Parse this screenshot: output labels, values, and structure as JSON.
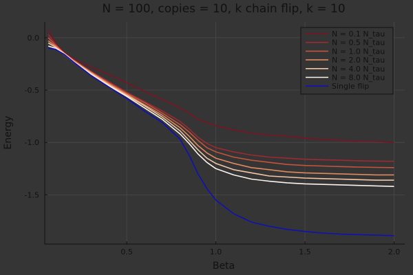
{
  "chart_data": {
    "type": "line",
    "title": "N = 100, copies = 10, k chain flip, k = 10",
    "xlabel": "Beta",
    "ylabel": "Energy",
    "xlim": [
      0.04,
      2.06
    ],
    "ylim": [
      -1.97,
      0.15
    ],
    "xticks": [
      0.5,
      1.0,
      1.5,
      2.0
    ],
    "xtick_labels": [
      "0.5",
      "1.0",
      "1.5",
      "2.0"
    ],
    "yticks": [
      0.0,
      -0.5,
      -1.0,
      -1.5
    ],
    "ytick_labels": [
      "0.0",
      "-0.5",
      "-1.0",
      "-1.5"
    ],
    "grid": true,
    "legend_position": "top-right",
    "x": [
      0.06,
      0.1,
      0.15,
      0.2,
      0.3,
      0.4,
      0.5,
      0.6,
      0.7,
      0.8,
      0.85,
      0.9,
      0.95,
      1.0,
      1.1,
      1.2,
      1.3,
      1.4,
      1.5,
      1.6,
      1.7,
      1.8,
      1.9,
      2.0
    ],
    "series": [
      {
        "name": "N = 0.1 N_tau",
        "color": "#7a1424",
        "values": [
          0.08,
          -0.05,
          -0.14,
          -0.2,
          -0.28,
          -0.35,
          -0.43,
          -0.51,
          -0.59,
          -0.67,
          -0.72,
          -0.78,
          -0.81,
          -0.84,
          -0.88,
          -0.91,
          -0.93,
          -0.94,
          -0.96,
          -0.97,
          -0.98,
          -0.99,
          -0.99,
          -1.0
        ]
      },
      {
        "name": "N = 0.5 N_tau",
        "color": "#9e2a2f",
        "values": [
          0.03,
          -0.06,
          -0.15,
          -0.21,
          -0.32,
          -0.42,
          -0.52,
          -0.61,
          -0.7,
          -0.8,
          -0.87,
          -0.95,
          -1.01,
          -1.05,
          -1.09,
          -1.12,
          -1.14,
          -1.15,
          -1.16,
          -1.165,
          -1.17,
          -1.175,
          -1.178,
          -1.18
        ]
      },
      {
        "name": "N = 1.0 N_tau",
        "color": "#c4543c",
        "values": [
          0.0,
          -0.07,
          -0.15,
          -0.21,
          -0.33,
          -0.43,
          -0.53,
          -0.62,
          -0.72,
          -0.83,
          -0.9,
          -0.98,
          -1.05,
          -1.09,
          -1.14,
          -1.17,
          -1.19,
          -1.21,
          -1.22,
          -1.225,
          -1.23,
          -1.235,
          -1.238,
          -1.24
        ]
      },
      {
        "name": "N = 2.0 N_tau",
        "color": "#e08a5e",
        "values": [
          -0.03,
          -0.08,
          -0.15,
          -0.22,
          -0.33,
          -0.44,
          -0.54,
          -0.64,
          -0.74,
          -0.86,
          -0.94,
          -1.03,
          -1.1,
          -1.15,
          -1.2,
          -1.24,
          -1.26,
          -1.28,
          -1.29,
          -1.295,
          -1.3,
          -1.305,
          -1.31,
          -1.31
        ]
      },
      {
        "name": "N = 4.0 N_tau",
        "color": "#f1c7a8",
        "values": [
          -0.05,
          -0.09,
          -0.15,
          -0.22,
          -0.34,
          -0.45,
          -0.55,
          -0.65,
          -0.76,
          -0.89,
          -0.98,
          -1.07,
          -1.15,
          -1.2,
          -1.26,
          -1.29,
          -1.32,
          -1.33,
          -1.34,
          -1.345,
          -1.35,
          -1.355,
          -1.36,
          -1.36
        ]
      },
      {
        "name": "N = 8.0 N_tau",
        "color": "#fbf4ee",
        "values": [
          -0.08,
          -0.1,
          -0.16,
          -0.23,
          -0.35,
          -0.46,
          -0.56,
          -0.67,
          -0.78,
          -0.92,
          -1.01,
          -1.11,
          -1.19,
          -1.25,
          -1.31,
          -1.35,
          -1.37,
          -1.385,
          -1.395,
          -1.4,
          -1.405,
          -1.41,
          -1.415,
          -1.42
        ]
      },
      {
        "name": "Single flip",
        "color": "#1010b4",
        "values": [
          -0.1,
          -0.11,
          -0.16,
          -0.23,
          -0.36,
          -0.47,
          -0.58,
          -0.7,
          -0.81,
          -0.97,
          -1.12,
          -1.3,
          -1.44,
          -1.55,
          -1.68,
          -1.76,
          -1.8,
          -1.83,
          -1.85,
          -1.865,
          -1.875,
          -1.88,
          -1.885,
          -1.89
        ]
      }
    ]
  }
}
